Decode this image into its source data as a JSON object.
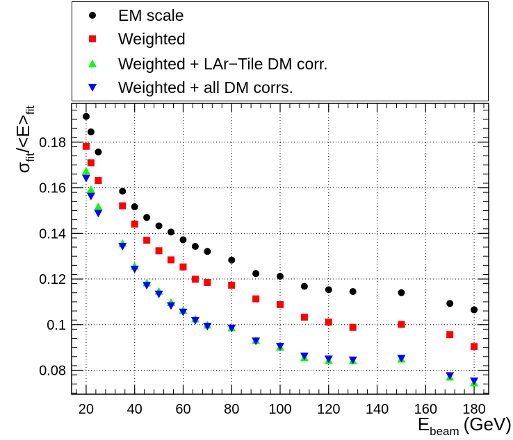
{
  "chart_data": {
    "type": "scatter",
    "xlabel": "E",
    "xlabel_sub": "beam",
    "xlabel_unit": "(GeV)",
    "ylabel_main": "σ",
    "ylabel_sub1": "fit",
    "ylabel_mid": "/<E>",
    "ylabel_sub2": "fit",
    "xlim": [
      14,
      186
    ],
    "ylim": [
      0.0695,
      0.197
    ],
    "grid": true,
    "legend_position": "top",
    "x_ticks": [
      20,
      40,
      60,
      80,
      100,
      120,
      140,
      160,
      180
    ],
    "x_tick_labels": [
      "20",
      "40",
      "60",
      "80",
      "100",
      "120",
      "140",
      "160",
      "180"
    ],
    "y_ticks": [
      0.08,
      0.1,
      0.12,
      0.14,
      0.16,
      0.18
    ],
    "y_tick_labels": [
      "0.08",
      "0.1",
      "0.12",
      "0.14",
      "0.16",
      "0.18"
    ],
    "series": [
      {
        "name": "EM scale",
        "marker": "circle",
        "color": "#000000",
        "x": [
          20,
          22,
          25,
          35,
          40,
          45,
          50,
          55,
          60,
          65,
          70,
          80,
          90,
          100,
          110,
          120,
          130,
          150,
          170,
          180
        ],
        "y": [
          0.1913,
          0.1845,
          0.1757,
          0.1585,
          0.1517,
          0.147,
          0.1433,
          0.1406,
          0.1372,
          0.1343,
          0.1321,
          0.1283,
          0.1224,
          0.1212,
          0.1168,
          0.1153,
          0.1145,
          0.114,
          0.1093,
          0.1065
        ]
      },
      {
        "name": "Weighted",
        "marker": "square",
        "color": "#ff0000",
        "x": [
          20,
          22,
          25,
          35,
          40,
          45,
          50,
          55,
          60,
          65,
          70,
          80,
          90,
          100,
          110,
          120,
          130,
          150,
          170,
          180
        ],
        "y": [
          0.1782,
          0.171,
          0.1632,
          0.1521,
          0.1441,
          0.137,
          0.1324,
          0.1284,
          0.1253,
          0.1199,
          0.1185,
          0.1173,
          0.1113,
          0.1088,
          0.1033,
          0.1011,
          0.0988,
          0.1001,
          0.0956,
          0.0904
        ]
      },
      {
        "name": "Weighted + LAr−Tile DM corr.",
        "marker": "triangle-up",
        "color": "#00ff00",
        "x": [
          20,
          22,
          25,
          35,
          40,
          45,
          50,
          55,
          60,
          65,
          70,
          80,
          90,
          100,
          110,
          120,
          130,
          150,
          170,
          180
        ],
        "y": [
          0.1673,
          0.1592,
          0.1517,
          0.1357,
          0.1256,
          0.1183,
          0.1146,
          0.1097,
          0.1063,
          0.1025,
          0.0998,
          0.0986,
          0.093,
          0.0901,
          0.0855,
          0.0843,
          0.0841,
          0.0849,
          0.077,
          0.0745
        ]
      },
      {
        "name": "Weighted + all DM corrs.",
        "marker": "triangle-down",
        "color": "#0000ff",
        "x": [
          20,
          22,
          25,
          35,
          40,
          45,
          50,
          55,
          60,
          65,
          70,
          80,
          90,
          100,
          110,
          120,
          130,
          150,
          170,
          180
        ],
        "y": [
          0.1642,
          0.1563,
          0.1488,
          0.1343,
          0.1243,
          0.1172,
          0.1134,
          0.1083,
          0.1055,
          0.1018,
          0.0993,
          0.0985,
          0.0928,
          0.0905,
          0.0862,
          0.0849,
          0.0845,
          0.0852,
          0.0776,
          0.0753
        ]
      }
    ]
  }
}
